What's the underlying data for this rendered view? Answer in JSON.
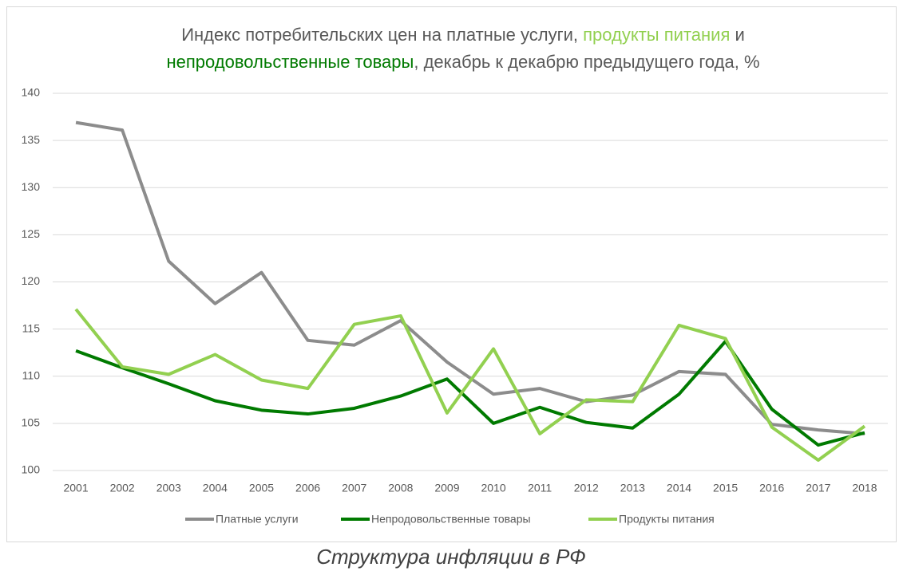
{
  "chart_data": {
    "type": "line",
    "title_lines": [
      [
        {
          "text": "Индекс потребительских цен на платные услуги, ",
          "color": "#595959"
        },
        {
          "text": "продукты питания",
          "color": "#92d050"
        },
        {
          "text": " и",
          "color": "#595959"
        }
      ],
      [
        {
          "text": "непродовольственные товары",
          "color": "#007a00"
        },
        {
          "text": ", декабрь к декабрю предыдущего года, %",
          "color": "#595959"
        }
      ]
    ],
    "categories": [
      "2001",
      "2002",
      "2003",
      "2004",
      "2005",
      "2006",
      "2007",
      "2008",
      "2009",
      "2010",
      "2011",
      "2012",
      "2013",
      "2014",
      "2015",
      "2016",
      "2017",
      "2018"
    ],
    "series": [
      {
        "name": "Платные услуги",
        "color": "#8c8c8c",
        "values": [
          136.9,
          136.1,
          122.2,
          117.7,
          121.0,
          113.8,
          113.3,
          115.9,
          111.5,
          108.1,
          108.7,
          107.3,
          108.0,
          110.5,
          110.2,
          104.9,
          104.3,
          103.9
        ]
      },
      {
        "name": "Непродовольственные товары",
        "color": "#007a00",
        "values": [
          112.7,
          110.9,
          109.2,
          107.4,
          106.4,
          106.0,
          106.6,
          107.9,
          109.7,
          105.0,
          106.7,
          105.1,
          104.5,
          108.1,
          113.7,
          106.5,
          102.7,
          104.0
        ]
      },
      {
        "name": "Продукты питания",
        "color": "#92d050",
        "values": [
          117.1,
          111.0,
          110.2,
          112.3,
          109.6,
          108.7,
          115.5,
          116.4,
          106.1,
          112.9,
          103.9,
          107.5,
          107.3,
          115.4,
          114.0,
          104.6,
          101.1,
          104.7
        ]
      }
    ],
    "ylim": [
      100,
      140
    ],
    "yticks": [
      100,
      105,
      110,
      115,
      120,
      125,
      130,
      135,
      140
    ],
    "grid": true,
    "legend": "bottom",
    "caption": "Структура инфляции в РФ"
  }
}
